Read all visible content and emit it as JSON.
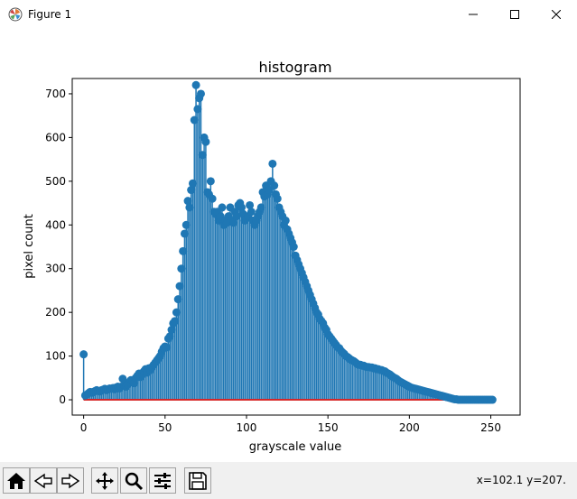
{
  "window": {
    "title": "Figure 1"
  },
  "toolbar": {
    "buttons": [
      "home-icon",
      "back-icon",
      "forward-icon",
      "pan-icon",
      "zoom-icon",
      "configure-subplots-icon",
      "save-icon"
    ],
    "coords": "x=102.1 y=207."
  },
  "colors": {
    "stem": "#1f77b4",
    "baseline": "#d62728"
  },
  "chart_data": {
    "type": "stem",
    "title": "histogram",
    "xlabel": "grayscale value",
    "ylabel": "pixel count",
    "xlim": [
      -7,
      268
    ],
    "ylim": [
      -35,
      735
    ],
    "xticks": [
      0,
      50,
      100,
      150,
      200,
      250
    ],
    "yticks": [
      0,
      100,
      200,
      300,
      400,
      500,
      600,
      700
    ],
    "grid": false,
    "x_start": 0,
    "values": [
      104,
      10,
      12,
      15,
      18,
      16,
      18,
      20,
      22,
      20,
      19,
      22,
      23,
      25,
      22,
      24,
      26,
      25,
      27,
      24,
      28,
      30,
      26,
      30,
      48,
      32,
      30,
      35,
      40,
      45,
      42,
      38,
      50,
      55,
      60,
      52,
      58,
      65,
      70,
      62,
      72,
      68,
      75,
      80,
      85,
      90,
      95,
      100,
      110,
      118,
      122,
      120,
      140,
      145,
      160,
      175,
      180,
      200,
      230,
      260,
      300,
      340,
      380,
      400,
      455,
      440,
      480,
      495,
      640,
      720,
      665,
      690,
      700,
      560,
      600,
      590,
      475,
      470,
      500,
      460,
      430,
      425,
      430,
      410,
      420,
      440,
      400,
      410,
      405,
      420,
      440,
      410,
      405,
      430,
      420,
      445,
      450,
      440,
      425,
      410,
      415,
      420,
      445,
      430,
      410,
      400,
      410,
      420,
      430,
      440,
      475,
      465,
      490,
      470,
      480,
      500,
      540,
      490,
      470,
      460,
      440,
      430,
      420,
      400,
      410,
      390,
      380,
      370,
      360,
      350,
      330,
      320,
      310,
      300,
      290,
      280,
      270,
      260,
      250,
      240,
      230,
      220,
      210,
      200,
      195,
      185,
      180,
      175,
      165,
      160,
      150,
      145,
      140,
      135,
      130,
      125,
      120,
      118,
      112,
      108,
      105,
      100,
      98,
      95,
      92,
      90,
      88,
      85,
      82,
      80,
      80,
      78,
      78,
      76,
      75,
      75,
      74,
      74,
      72,
      72,
      70,
      70,
      68,
      68,
      66,
      65,
      62,
      60,
      58,
      55,
      52,
      50,
      48,
      45,
      42,
      40,
      38,
      36,
      34,
      32,
      30,
      28,
      27,
      26,
      25,
      24,
      23,
      22,
      21,
      20,
      19,
      18,
      17,
      16,
      15,
      14,
      13,
      12,
      11,
      10,
      9,
      8,
      7,
      6,
      5,
      4,
      3,
      2,
      1,
      1,
      0,
      0,
      0,
      0,
      0,
      0,
      0,
      0,
      0,
      0,
      0,
      0,
      0,
      0,
      0,
      0,
      0,
      0,
      0,
      0,
      0,
      0
    ]
  }
}
